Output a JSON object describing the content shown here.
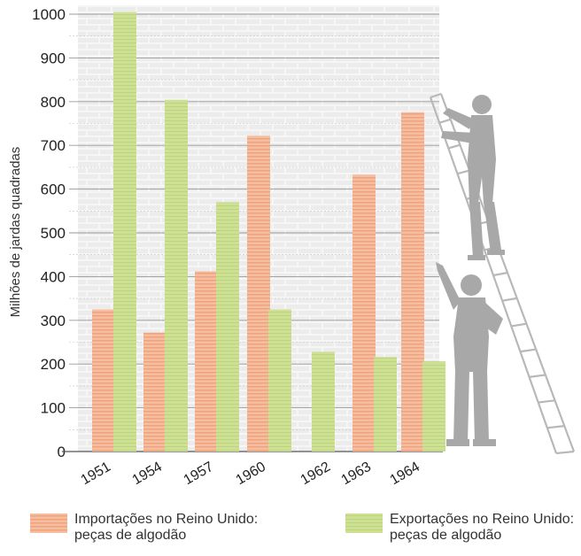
{
  "chart_data": {
    "type": "bar",
    "ylabel": "Milhões de jardas quadradas",
    "xlabel": "",
    "title": "",
    "ylim": [
      0,
      1000
    ],
    "yticks": [
      0,
      100,
      200,
      300,
      400,
      500,
      600,
      700,
      800,
      900,
      1000
    ],
    "categories": [
      "1951",
      "1954",
      "1957",
      "1960",
      "1962",
      "1963",
      "1964"
    ],
    "series": [
      {
        "name": "Importações no Reino Unido: peças de algodão",
        "color": "#f4b594",
        "values": [
          325,
          272,
          412,
          722,
          null,
          633,
          776
        ]
      },
      {
        "name": "Exportações no Reino Unido: peças de algodão",
        "color": "#c7dc8a",
        "values": [
          1005,
          804,
          570,
          325,
          228,
          216,
          206
        ]
      }
    ],
    "grid": true,
    "legend_position": "bottom"
  },
  "legend": {
    "imports_line1": "Importações no Reino Unido:",
    "imports_line2": "peças de algodão",
    "exports_line1": "Exportações no Reino Unido:",
    "exports_line2": "peças de algodão"
  },
  "illustration": {
    "figures": "two-workers-ladder-silhouette"
  }
}
